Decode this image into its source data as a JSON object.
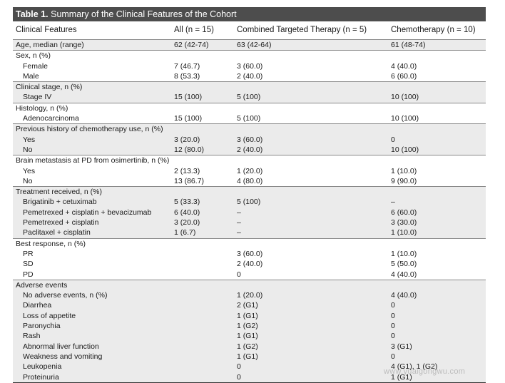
{
  "table": {
    "title_number": "Table 1.",
    "title_text": "Summary of the Clinical Features of the Cohort",
    "headers": [
      "Clinical Features",
      "All (n = 15)",
      "Combined Targeted Therapy (n = 5)",
      "Chemotherapy (n = 10)"
    ],
    "rows": [
      {
        "label": "Age, median (range)",
        "indent": false,
        "section": true,
        "shade": true,
        "c2": "62 (42-74)",
        "c3": "63 (42-64)",
        "c4": "61 (48-74)"
      },
      {
        "label": "Sex, n (%)",
        "indent": false,
        "section": true,
        "shade": false,
        "c2": "",
        "c3": "",
        "c4": ""
      },
      {
        "label": "Female",
        "indent": true,
        "section": false,
        "shade": false,
        "c2": "7 (46.7)",
        "c3": "3 (60.0)",
        "c4": "4 (40.0)"
      },
      {
        "label": "Male",
        "indent": true,
        "section": false,
        "shade": false,
        "c2": "8 (53.3)",
        "c3": "2 (40.0)",
        "c4": "6 (60.0)"
      },
      {
        "label": "Clinical stage, n (%)",
        "indent": false,
        "section": true,
        "shade": true,
        "c2": "",
        "c3": "",
        "c4": ""
      },
      {
        "label": "Stage IV",
        "indent": true,
        "section": false,
        "shade": true,
        "c2": "15 (100)",
        "c3": "5 (100)",
        "c4": "10 (100)"
      },
      {
        "label": "Histology, n (%)",
        "indent": false,
        "section": true,
        "shade": false,
        "c2": "",
        "c3": "",
        "c4": ""
      },
      {
        "label": "Adenocarcinoma",
        "indent": true,
        "section": false,
        "shade": false,
        "c2": "15 (100)",
        "c3": "5 (100)",
        "c4": "10 (100)"
      },
      {
        "label": "Previous history of chemotherapy use, n (%)",
        "indent": false,
        "section": true,
        "shade": true,
        "c2": "",
        "c3": "",
        "c4": ""
      },
      {
        "label": "Yes",
        "indent": true,
        "section": false,
        "shade": true,
        "c2": "3 (20.0)",
        "c3": "3 (60.0)",
        "c4": "0"
      },
      {
        "label": "No",
        "indent": true,
        "section": false,
        "shade": true,
        "c2": "12 (80.0)",
        "c3": "2 (40.0)",
        "c4": "10 (100)"
      },
      {
        "label": "Brain metastasis at PD from osimertinib, n (%)",
        "indent": false,
        "section": true,
        "shade": false,
        "c2": "",
        "c3": "",
        "c4": ""
      },
      {
        "label": "Yes",
        "indent": true,
        "section": false,
        "shade": false,
        "c2": "2 (13.3)",
        "c3": "1 (20.0)",
        "c4": "1 (10.0)"
      },
      {
        "label": "No",
        "indent": true,
        "section": false,
        "shade": false,
        "c2": "13 (86.7)",
        "c3": "4 (80.0)",
        "c4": "9 (90.0)"
      },
      {
        "label": "Treatment received, n (%)",
        "indent": false,
        "section": true,
        "shade": true,
        "c2": "",
        "c3": "",
        "c4": ""
      },
      {
        "label": "Brigatinib + cetuximab",
        "indent": true,
        "section": false,
        "shade": true,
        "c2": "5 (33.3)",
        "c3": "5 (100)",
        "c4": "–"
      },
      {
        "label": "Pemetrexed + cisplatin + bevacizumab",
        "indent": true,
        "section": false,
        "shade": true,
        "c2": "6 (40.0)",
        "c3": "–",
        "c4": "6 (60.0)"
      },
      {
        "label": "Pemetrexed + cisplatin",
        "indent": true,
        "section": false,
        "shade": true,
        "c2": "3 (20.0)",
        "c3": "–",
        "c4": "3 (30.0)"
      },
      {
        "label": "Paclitaxel + cisplatin",
        "indent": true,
        "section": false,
        "shade": true,
        "c2": "1 (6.7)",
        "c3": "–",
        "c4": "1 (10.0)"
      },
      {
        "label": "Best response, n (%)",
        "indent": false,
        "section": true,
        "shade": false,
        "c2": "",
        "c3": "",
        "c4": ""
      },
      {
        "label": "PR",
        "indent": true,
        "section": false,
        "shade": false,
        "c2": "",
        "c3": "3 (60.0)",
        "c4": "1 (10.0)"
      },
      {
        "label": "SD",
        "indent": true,
        "section": false,
        "shade": false,
        "c2": "",
        "c3": "2 (40.0)",
        "c4": "5 (50.0)"
      },
      {
        "label": "PD",
        "indent": true,
        "section": false,
        "shade": false,
        "c2": "",
        "c3": "0",
        "c4": "4 (40.0)"
      },
      {
        "label": "Adverse events",
        "indent": false,
        "section": true,
        "shade": true,
        "c2": "",
        "c3": "",
        "c4": ""
      },
      {
        "label": "No adverse events, n (%)",
        "indent": true,
        "section": false,
        "shade": true,
        "c2": "",
        "c3": "1 (20.0)",
        "c4": "4 (40.0)"
      },
      {
        "label": "Diarrhea",
        "indent": true,
        "section": false,
        "shade": true,
        "c2": "",
        "c3": "2 (G1)",
        "c4": "0"
      },
      {
        "label": "Loss of appetite",
        "indent": true,
        "section": false,
        "shade": true,
        "c2": "",
        "c3": "1 (G1)",
        "c4": "0"
      },
      {
        "label": "Paronychia",
        "indent": true,
        "section": false,
        "shade": true,
        "c2": "",
        "c3": "1 (G2)",
        "c4": "0"
      },
      {
        "label": "Rash",
        "indent": true,
        "section": false,
        "shade": true,
        "c2": "",
        "c3": "1 (G1)",
        "c4": "0"
      },
      {
        "label": "Abnormal liver function",
        "indent": true,
        "section": false,
        "shade": true,
        "c2": "",
        "c3": "1 (G2)",
        "c4": "3 (G1)"
      },
      {
        "label": "Weakness and vomiting",
        "indent": true,
        "section": false,
        "shade": true,
        "c2": "",
        "c3": "1 (G1)",
        "c4": "0"
      },
      {
        "label": "Leukopenia",
        "indent": true,
        "section": false,
        "shade": true,
        "c2": "",
        "c3": "0",
        "c4": "4 (G1), 1 (G2)"
      },
      {
        "label": "Proteinuria",
        "indent": true,
        "section": false,
        "shade": true,
        "c2": "",
        "c3": "0",
        "c4": "1 (G1)"
      }
    ]
  },
  "watermark": "www.yuaigongwu.com",
  "colors": {
    "title_bg": "#4d4d4d",
    "shade": "#ebebeb"
  }
}
